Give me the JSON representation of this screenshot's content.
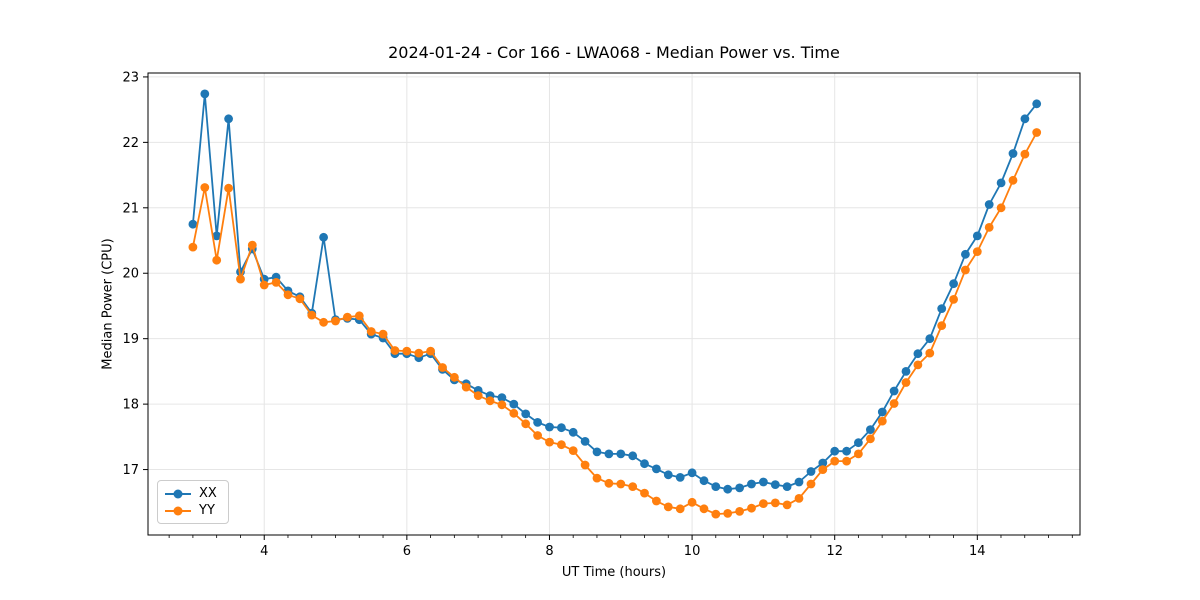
{
  "figure": {
    "background": "#ffffff"
  },
  "chart_data": {
    "type": "line",
    "title": "2024-01-24 - Cor 166 - LWA068 - Median Power vs. Time",
    "xlabel": "UT Time (hours)",
    "ylabel": "Median Power (CPU)",
    "xlim": [
      2.37,
      15.44
    ],
    "ylim": [
      16.0,
      23.06
    ],
    "xticks": [
      4,
      6,
      8,
      10,
      12,
      14
    ],
    "yticks": [
      17,
      18,
      19,
      20,
      21,
      22,
      23
    ],
    "minor_xtick_step": 0.3333,
    "grid": true,
    "grid_color": "#e6e6e6",
    "legend_position": "lower-left",
    "marker": "circle",
    "x": [
      3.0,
      3.167,
      3.333,
      3.5,
      3.667,
      3.833,
      4.0,
      4.167,
      4.333,
      4.5,
      4.667,
      4.833,
      5.0,
      5.167,
      5.333,
      5.5,
      5.667,
      5.833,
      6.0,
      6.167,
      6.333,
      6.5,
      6.667,
      6.833,
      7.0,
      7.167,
      7.333,
      7.5,
      7.667,
      7.833,
      8.0,
      8.167,
      8.333,
      8.5,
      8.667,
      8.833,
      9.0,
      9.167,
      9.333,
      9.5,
      9.667,
      9.833,
      10.0,
      10.167,
      10.333,
      10.5,
      10.667,
      10.833,
      11.0,
      11.167,
      11.333,
      11.5,
      11.667,
      11.833,
      12.0,
      12.167,
      12.333,
      12.5,
      12.667,
      12.833,
      13.0,
      13.167,
      13.333,
      13.5,
      13.667,
      13.833,
      14.0,
      14.167,
      14.333,
      14.5,
      14.667,
      14.833
    ],
    "series": [
      {
        "name": "XX",
        "color": "#1f77b4",
        "values": [
          20.75,
          22.74,
          20.57,
          22.36,
          20.02,
          20.37,
          19.91,
          19.94,
          19.73,
          19.64,
          19.39,
          20.55,
          19.29,
          19.31,
          19.29,
          19.07,
          19.01,
          18.77,
          18.77,
          18.71,
          18.77,
          18.53,
          18.37,
          18.31,
          18.21,
          18.13,
          18.1,
          18.0,
          17.85,
          17.72,
          17.65,
          17.64,
          17.57,
          17.43,
          17.27,
          17.24,
          17.24,
          17.21,
          17.09,
          17.01,
          16.92,
          16.88,
          16.95,
          16.83,
          16.74,
          16.7,
          16.72,
          16.78,
          16.81,
          16.77,
          16.74,
          16.81,
          16.97,
          17.1,
          17.28,
          17.28,
          17.41,
          17.61,
          17.88,
          18.2,
          18.5,
          18.77,
          19.0,
          19.46,
          19.84,
          20.29,
          20.57,
          21.05,
          21.38,
          21.83,
          22.36,
          22.59
        ]
      },
      {
        "name": "YY",
        "color": "#ff7f0e",
        "values": [
          20.4,
          21.31,
          20.2,
          21.3,
          19.91,
          20.43,
          19.82,
          19.86,
          19.67,
          19.61,
          19.36,
          19.25,
          19.27,
          19.33,
          19.35,
          19.11,
          19.07,
          18.82,
          18.81,
          18.78,
          18.81,
          18.56,
          18.41,
          18.26,
          18.13,
          18.05,
          17.99,
          17.86,
          17.7,
          17.52,
          17.42,
          17.38,
          17.29,
          17.07,
          16.87,
          16.79,
          16.78,
          16.74,
          16.64,
          16.52,
          16.43,
          16.4,
          16.5,
          16.4,
          16.32,
          16.33,
          16.36,
          16.41,
          16.48,
          16.49,
          16.46,
          16.56,
          16.78,
          17.0,
          17.13,
          17.13,
          17.24,
          17.47,
          17.74,
          18.01,
          18.33,
          18.6,
          18.78,
          19.2,
          19.6,
          20.05,
          20.33,
          20.7,
          21.0,
          21.42,
          21.82,
          22.15
        ]
      }
    ]
  },
  "legend": {
    "items": [
      {
        "label": "XX",
        "color": "#1f77b4"
      },
      {
        "label": "YY",
        "color": "#ff7f0e"
      }
    ]
  }
}
